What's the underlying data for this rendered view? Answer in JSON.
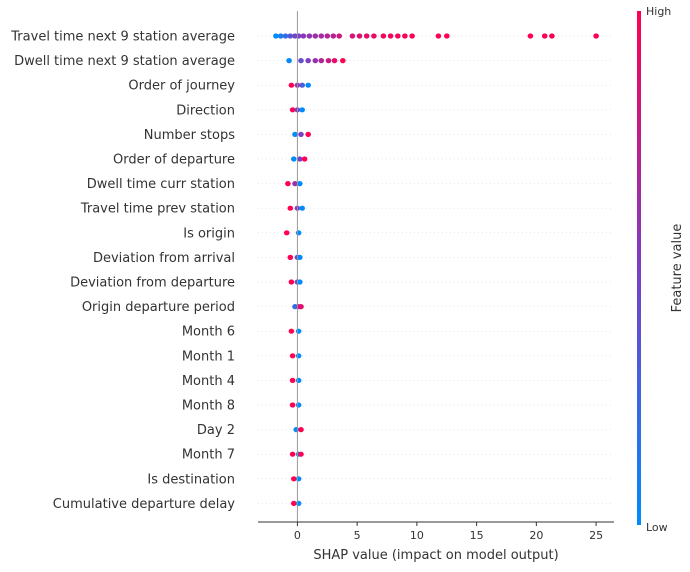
{
  "chart_data": {
    "type": "scatter",
    "subtype": "shap-beeswarm",
    "title": "",
    "xlabel": "SHAP value (impact on model output)",
    "xlim": [
      -3.3,
      26.5
    ],
    "xticks": [
      0,
      5,
      10,
      15,
      20,
      25
    ],
    "grid": false,
    "colorbar": {
      "label": "Feature value",
      "high_label": "High",
      "low_label": "Low",
      "low_color": "#008bfb",
      "mid_color": "#7b3fc4",
      "high_color": "#ff0052"
    },
    "features": [
      "Travel time next 9 station average",
      "Dwell time next 9 station average",
      "Order of journey",
      "Direction",
      "Number stops",
      "Order of departure",
      "Dwell time curr station",
      "Travel time prev station",
      "Is origin",
      "Deviation from arrival",
      "Deviation from departure",
      "Origin departure period",
      "Month 6",
      "Month 1",
      "Month 4",
      "Month 8",
      "Day 2",
      "Month 7",
      "Is destination",
      "Cumulative departure delay"
    ],
    "series": [
      {
        "feature": "Travel time next 9 station average",
        "points": [
          [
            -1.8,
            0.0
          ],
          [
            -1.4,
            0.1
          ],
          [
            -1.0,
            0.2
          ],
          [
            -0.6,
            0.35
          ],
          [
            -0.2,
            0.45
          ],
          [
            0.1,
            0.5
          ],
          [
            0.5,
            0.55
          ],
          [
            1.0,
            0.6
          ],
          [
            1.5,
            0.62
          ],
          [
            2.0,
            0.65
          ],
          [
            2.5,
            0.7
          ],
          [
            3.0,
            0.72
          ],
          [
            3.5,
            0.8
          ],
          [
            4.6,
            0.85
          ],
          [
            5.2,
            0.88
          ],
          [
            5.8,
            0.9
          ],
          [
            6.4,
            0.92
          ],
          [
            7.2,
            0.95
          ],
          [
            7.8,
            0.95
          ],
          [
            8.4,
            0.97
          ],
          [
            9.0,
            0.97
          ],
          [
            9.6,
            0.98
          ],
          [
            11.8,
            0.98
          ],
          [
            12.5,
            0.99
          ],
          [
            19.5,
            1.0
          ],
          [
            20.7,
            1.0
          ],
          [
            21.3,
            1.0
          ],
          [
            25.0,
            1.0
          ]
        ]
      },
      {
        "feature": "Dwell time next 9 station average",
        "points": [
          [
            -0.7,
            0.0
          ],
          [
            0.3,
            0.4
          ],
          [
            0.9,
            0.5
          ],
          [
            1.5,
            0.6
          ],
          [
            2.0,
            0.7
          ],
          [
            2.6,
            0.8
          ],
          [
            3.1,
            0.9
          ],
          [
            3.8,
            1.0
          ]
        ]
      },
      {
        "feature": "Order of journey",
        "points": [
          [
            -0.5,
            1.0
          ],
          [
            0.0,
            0.6
          ],
          [
            0.4,
            0.3
          ],
          [
            0.9,
            0.0
          ]
        ]
      },
      {
        "feature": "Direction",
        "points": [
          [
            -0.4,
            1.0
          ],
          [
            0.0,
            0.5
          ],
          [
            0.4,
            0.0
          ]
        ]
      },
      {
        "feature": "Number stops",
        "points": [
          [
            -0.2,
            0.0
          ],
          [
            0.3,
            0.5
          ],
          [
            0.9,
            1.0
          ]
        ]
      },
      {
        "feature": "Order of departure",
        "points": [
          [
            -0.3,
            0.0
          ],
          [
            0.2,
            0.5
          ],
          [
            0.6,
            1.0
          ]
        ]
      },
      {
        "feature": "Dwell time curr station",
        "points": [
          [
            -0.8,
            1.0
          ],
          [
            -0.2,
            0.6
          ],
          [
            0.2,
            0.0
          ]
        ]
      },
      {
        "feature": "Travel time prev station",
        "points": [
          [
            -0.6,
            1.0
          ],
          [
            0.0,
            0.5
          ],
          [
            0.4,
            0.0
          ]
        ]
      },
      {
        "feature": "Is origin",
        "points": [
          [
            -0.9,
            1.0
          ],
          [
            0.1,
            0.0
          ]
        ]
      },
      {
        "feature": "Deviation from arrival",
        "points": [
          [
            -0.6,
            1.0
          ],
          [
            0.0,
            0.4
          ],
          [
            0.2,
            0.0
          ]
        ]
      },
      {
        "feature": "Deviation from departure",
        "points": [
          [
            -0.5,
            1.0
          ],
          [
            0.0,
            0.4
          ],
          [
            0.2,
            0.0
          ]
        ]
      },
      {
        "feature": "Origin departure period",
        "points": [
          [
            -0.2,
            0.2
          ],
          [
            0.1,
            0.6
          ],
          [
            0.3,
            0.9
          ]
        ]
      },
      {
        "feature": "Month 6",
        "points": [
          [
            -0.5,
            1.0
          ],
          [
            0.1,
            0.0
          ]
        ]
      },
      {
        "feature": "Month 1",
        "points": [
          [
            -0.4,
            1.0
          ],
          [
            0.1,
            0.0
          ]
        ]
      },
      {
        "feature": "Month 4",
        "points": [
          [
            -0.4,
            1.0
          ],
          [
            0.1,
            0.0
          ]
        ]
      },
      {
        "feature": "Month 8",
        "points": [
          [
            -0.4,
            1.0
          ],
          [
            0.1,
            0.0
          ]
        ]
      },
      {
        "feature": "Day 2",
        "points": [
          [
            -0.1,
            0.0
          ],
          [
            0.3,
            1.0
          ]
        ]
      },
      {
        "feature": "Month 7",
        "points": [
          [
            -0.4,
            1.0
          ],
          [
            0.1,
            0.0
          ],
          [
            0.3,
            1.0
          ]
        ]
      },
      {
        "feature": "Is destination",
        "points": [
          [
            -0.3,
            1.0
          ],
          [
            0.1,
            0.0
          ]
        ]
      },
      {
        "feature": "Cumulative departure delay",
        "points": [
          [
            -0.3,
            1.0
          ],
          [
            0.1,
            0.0
          ]
        ]
      }
    ]
  }
}
